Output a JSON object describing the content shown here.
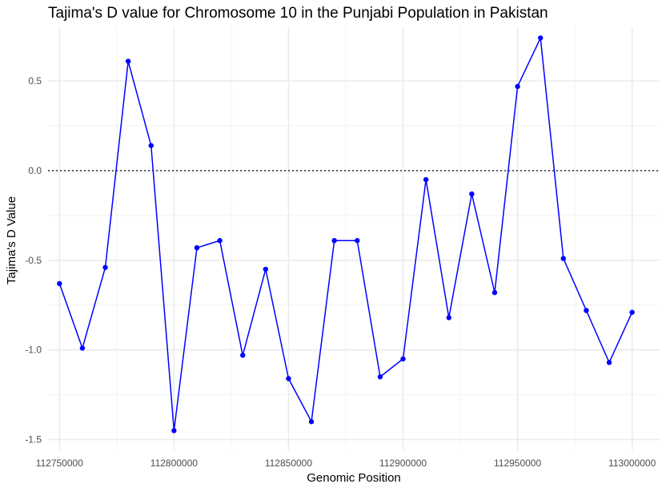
{
  "chart_data": {
    "type": "line",
    "title": "Tajima's D value for Chromosome 10 in the Punjabi Population in Pakistan",
    "xlabel": "Genomic Position",
    "ylabel": "Tajima's D Value",
    "x_ticks": [
      112750000,
      112800000,
      112850000,
      112900000,
      112950000,
      113000000
    ],
    "x_tick_labels": [
      "112750000",
      "112800000",
      "112850000",
      "112900000",
      "112950000",
      "113000000"
    ],
    "y_ticks": [
      -1.5,
      -1.0,
      -0.5,
      0.0,
      0.5
    ],
    "y_tick_labels": [
      "-1.5",
      "-1.0",
      "-0.5",
      "0.0",
      "0.5"
    ],
    "xlim": [
      112745000,
      113012000
    ],
    "ylim": [
      -1.56,
      0.8
    ],
    "grid": true,
    "reference_line": {
      "y": 0,
      "style": "dotted"
    },
    "line_color": "#0000ff",
    "point_color": "#0000ff",
    "x": [
      112750000,
      112760000,
      112770000,
      112780000,
      112790000,
      112800000,
      112810000,
      112820000,
      112830000,
      112840000,
      112850000,
      112860000,
      112870000,
      112880000,
      112890000,
      112900000,
      112910000,
      112920000,
      112930000,
      112940000,
      112950000,
      112960000,
      112970000,
      112980000,
      112990000,
      113000000
    ],
    "y": [
      -0.63,
      -0.99,
      -0.54,
      0.61,
      0.14,
      -1.45,
      -0.43,
      -0.39,
      -1.03,
      -0.55,
      -1.16,
      -1.4,
      -0.39,
      -0.39,
      -1.15,
      -1.05,
      -0.05,
      -0.82,
      -0.13,
      -0.68,
      0.47,
      0.74,
      -0.49,
      -0.78,
      -1.07,
      -0.79
    ]
  }
}
